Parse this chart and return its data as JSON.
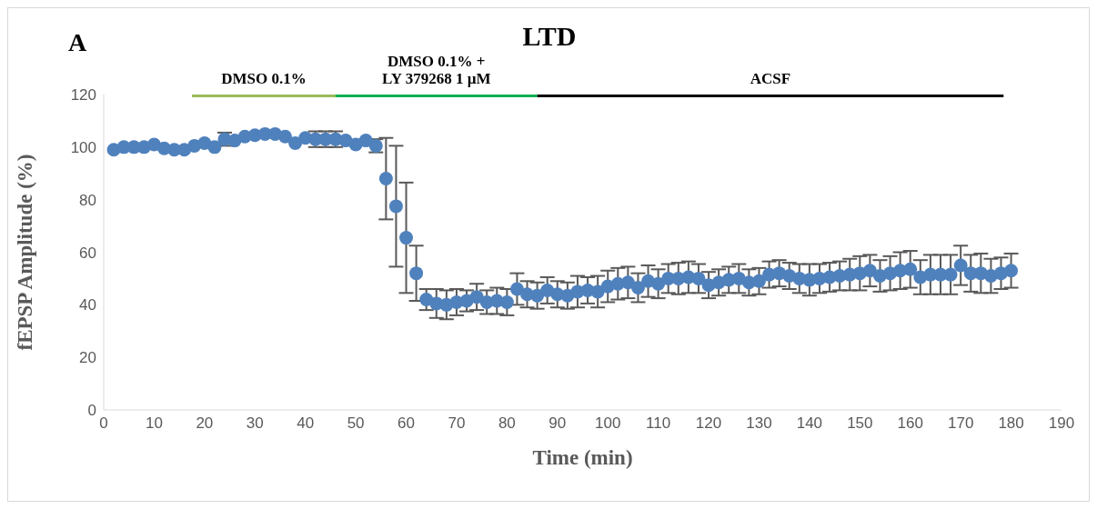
{
  "chart_data": {
    "type": "scatter",
    "title": "LTD",
    "xlabel": "Time (min)",
    "ylabel": "fEPSP Amplitude (%)",
    "annotations": [
      "A"
    ],
    "x": [
      2,
      4,
      6,
      8,
      10,
      12,
      14,
      16,
      18,
      20,
      22,
      24,
      26,
      28,
      30,
      32,
      34,
      36,
      38,
      40,
      42,
      44,
      46,
      48,
      50,
      52,
      54,
      56,
      58,
      60,
      62,
      64,
      66,
      68,
      70,
      72,
      74,
      76,
      78,
      80,
      82,
      84,
      86,
      88,
      90,
      92,
      94,
      96,
      98,
      100,
      102,
      104,
      106,
      108,
      110,
      112,
      114,
      116,
      118,
      120,
      122,
      124,
      126,
      128,
      130,
      132,
      134,
      136,
      138,
      140,
      142,
      144,
      146,
      148,
      150,
      152,
      154,
      156,
      158,
      160,
      162,
      164,
      166,
      168,
      170,
      172,
      174,
      176,
      178,
      180
    ],
    "series": [
      {
        "color": "#4f81bd",
        "values": [
          99,
          100,
          100,
          100,
          101,
          99.5,
          99,
          99,
          100.5,
          101.5,
          100,
          103,
          102.5,
          104,
          104.5,
          105,
          105,
          104,
          101.5,
          103.5,
          103,
          103,
          103,
          102.5,
          101,
          102.5,
          100.5,
          88,
          77.5,
          65.5,
          52,
          42,
          40.5,
          40,
          41,
          41.5,
          43,
          41,
          41.5,
          41,
          46,
          44,
          43.5,
          45.5,
          44,
          43.5,
          45,
          45.5,
          45,
          47,
          48,
          48.5,
          46.5,
          49,
          48,
          50,
          50,
          50.5,
          50,
          47.5,
          48.5,
          49.5,
          50,
          48.5,
          49,
          51.5,
          52,
          51,
          50,
          49.5,
          50,
          50.5,
          51,
          51.5,
          52,
          53,
          51,
          52,
          53,
          53.5,
          50.5,
          51.5,
          51.5,
          51.5,
          55,
          52,
          52,
          51,
          52,
          53
        ],
        "errors": [
          null,
          null,
          null,
          null,
          null,
          null,
          null,
          null,
          null,
          null,
          null,
          2.5,
          null,
          null,
          null,
          null,
          null,
          null,
          null,
          null,
          3,
          3,
          3,
          null,
          null,
          null,
          2.5,
          15.5,
          23,
          21,
          10.5,
          4,
          5.5,
          5.5,
          5,
          4,
          5,
          4.5,
          5,
          5,
          6,
          5,
          5,
          5,
          5,
          5,
          6,
          5,
          6,
          6,
          6,
          6,
          5.5,
          6,
          5.5,
          5.5,
          6,
          6,
          5.5,
          5,
          5,
          5,
          5.5,
          5,
          5,
          5,
          5,
          5,
          5.5,
          6,
          5.5,
          5.5,
          5.5,
          6,
          6.5,
          6,
          6,
          6.5,
          7,
          7,
          6.5,
          7.5,
          7.5,
          7.5,
          7.5,
          7,
          7.5,
          6.5,
          6,
          6.5
        ]
      },
      {
        "type": "line",
        "name": "DMSO 0.1%",
        "color": "#9bbb59",
        "marker": "none",
        "x": [
          17.5,
          46
        ],
        "values": [
          120,
          120
        ]
      },
      {
        "type": "line",
        "name": "DMSO 0.1% +\nLY 379268 1 µM",
        "color": "#00b050",
        "marker": "none",
        "x": [
          46,
          86
        ],
        "values": [
          120,
          120
        ]
      },
      {
        "type": "line",
        "name": "ACSF",
        "color": "#000000",
        "marker": "none",
        "x": [
          86,
          178.5
        ],
        "values": [
          120,
          120
        ]
      }
    ],
    "xlim": [
      0,
      190
    ],
    "xticks": [
      0,
      10,
      20,
      30,
      40,
      50,
      60,
      70,
      80,
      90,
      100,
      110,
      120,
      130,
      140,
      150,
      160,
      170,
      180,
      190
    ],
    "ylim": [
      0,
      120
    ],
    "yticks": [
      0,
      20,
      40,
      60,
      80,
      100,
      120
    ],
    "marker": "circle"
  }
}
